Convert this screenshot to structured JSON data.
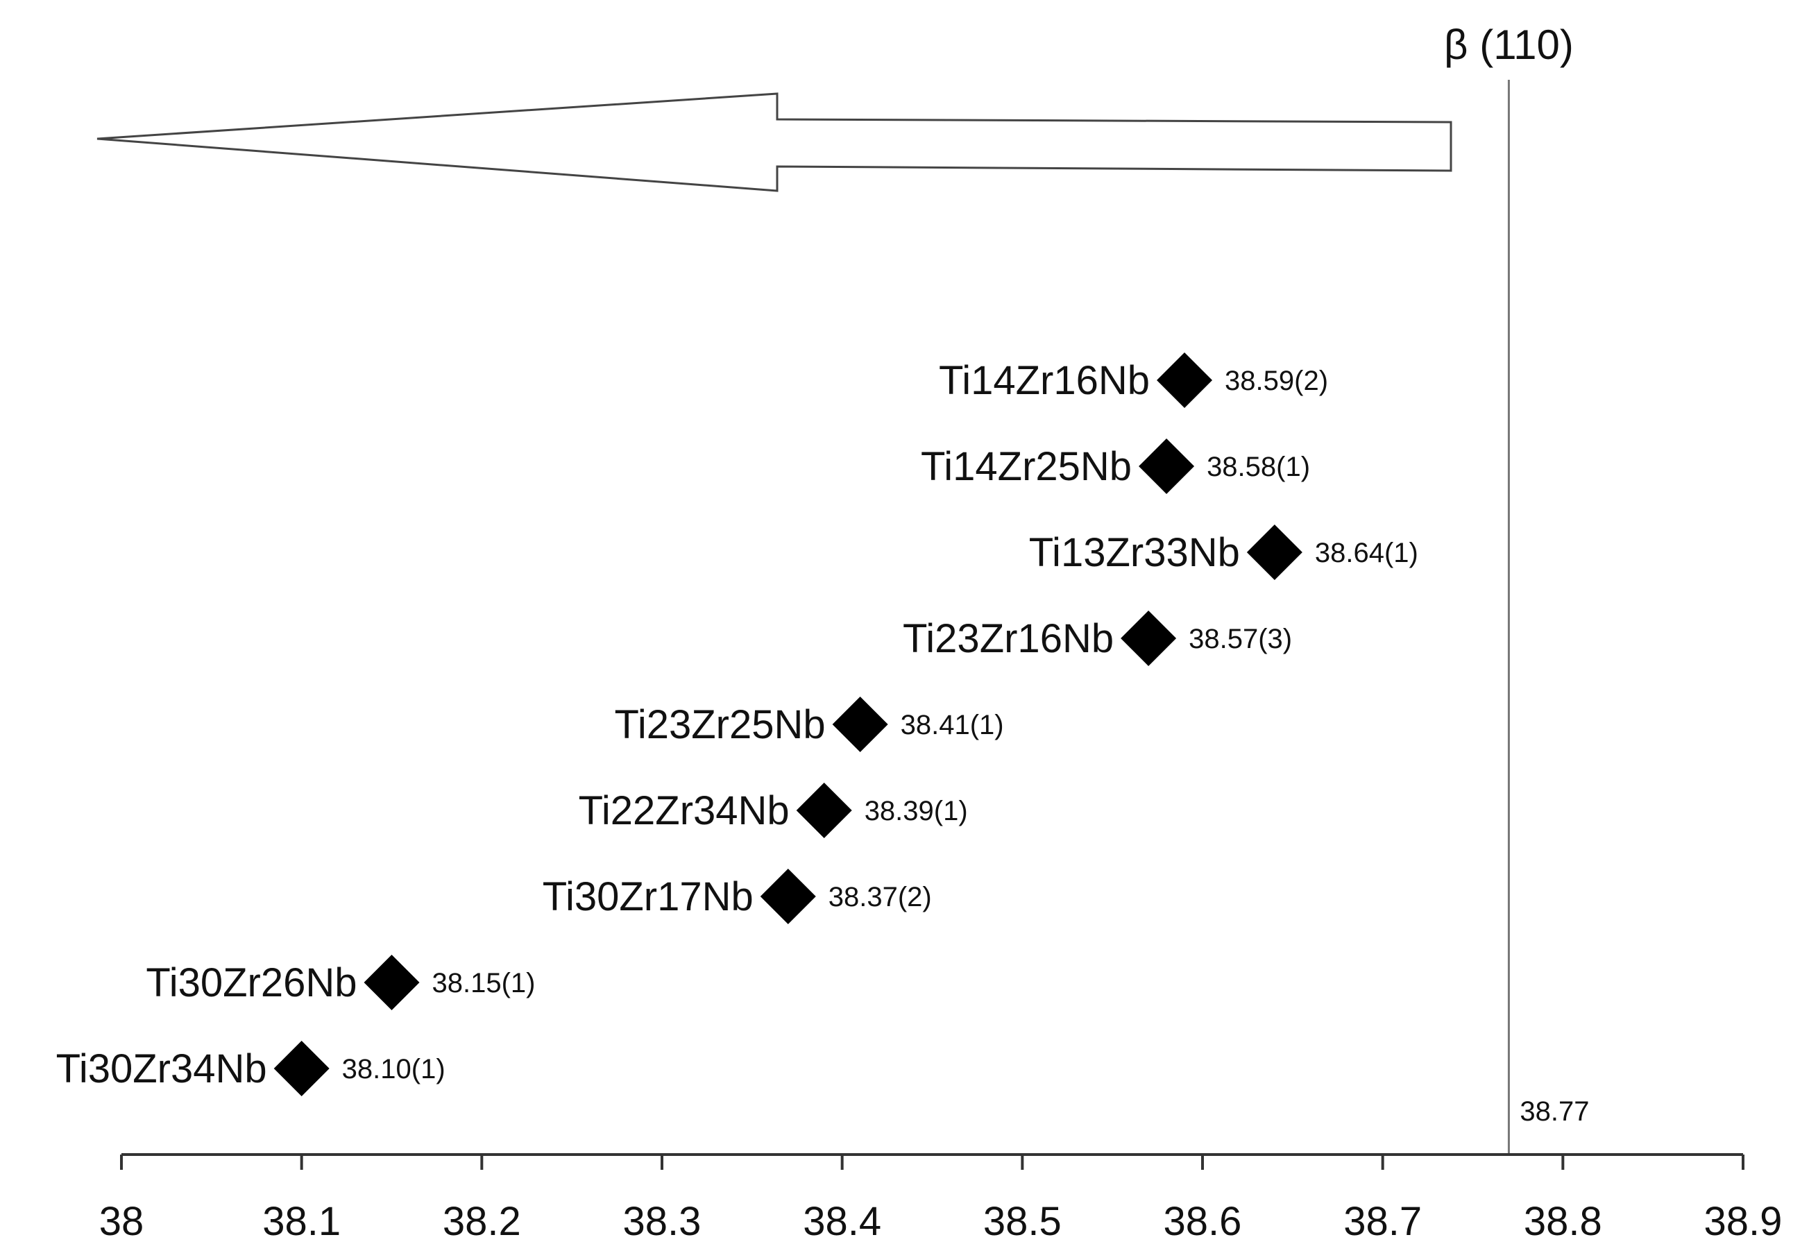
{
  "chart_data": {
    "type": "scatter",
    "title": "",
    "xlabel": "",
    "ylabel": "",
    "xlim": [
      38.0,
      38.9
    ],
    "x_ticks": [
      38.0,
      38.1,
      38.2,
      38.3,
      38.4,
      38.5,
      38.6,
      38.7,
      38.8,
      38.9
    ],
    "x_tick_labels": [
      "38",
      "38.1",
      "38.2",
      "38.3",
      "38.4",
      "38.5",
      "38.6",
      "38.7",
      "38.8",
      "38.9"
    ],
    "grid": false,
    "points": [
      {
        "label": "Ti14Zr16Nb",
        "x": 38.59,
        "value_label": "38.59(2)"
      },
      {
        "label": "Ti14Zr25Nb",
        "x": 38.58,
        "value_label": "38.58(1)"
      },
      {
        "label": "Ti13Zr33Nb",
        "x": 38.64,
        "value_label": "38.64(1)"
      },
      {
        "label": "Ti23Zr16Nb",
        "x": 38.57,
        "value_label": "38.57(3)"
      },
      {
        "label": "Ti23Zr25Nb",
        "x": 38.41,
        "value_label": "38.41(1)"
      },
      {
        "label": "Ti22Zr34Nb",
        "x": 38.39,
        "value_label": "38.39(1)"
      },
      {
        "label": "Ti30Zr17Nb",
        "x": 38.37,
        "value_label": "38.37(2)"
      },
      {
        "label": "Ti30Zr26Nb",
        "x": 38.15,
        "value_label": "38.15(1)"
      },
      {
        "label": "Ti30Zr34Nb",
        "x": 38.1,
        "value_label": "38.10(1)"
      }
    ],
    "reference_line": {
      "x": 38.77,
      "title": "β (110)",
      "value_label": "38.77"
    },
    "arrow": {
      "direction": "left",
      "style": "outline"
    },
    "marker": {
      "shape": "diamond",
      "color": "#000000"
    }
  }
}
